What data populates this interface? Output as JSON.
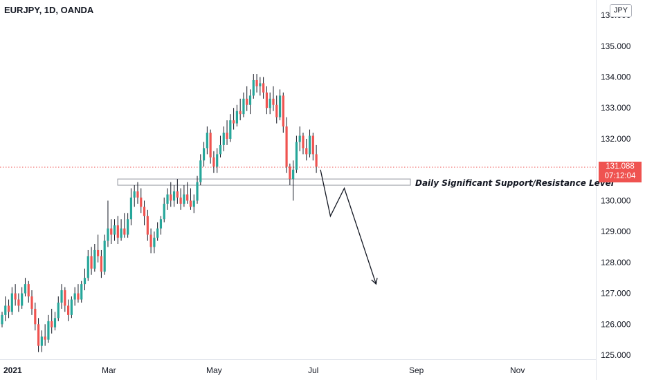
{
  "header": {
    "symbol": "EURJPY, 1D, OANDA",
    "currency": "JPY"
  },
  "last_price": {
    "value": "131.088",
    "countdown": "07:12:04"
  },
  "annotation": {
    "label": "Daily Significant Support/Resistance Level",
    "zone_low": 130.5,
    "zone_high": 130.7
  },
  "colors": {
    "up": "#26a69a",
    "down": "#ef5350",
    "text": "#131722",
    "axis_line": "#e0e3eb",
    "zone_border": "#9598a1"
  },
  "chart_data": {
    "type": "candlestick",
    "title": "EURJPY, 1D, OANDA",
    "ylim": [
      124.9,
      136.1
    ],
    "y_ticks": [
      "125.000",
      "126.000",
      "127.000",
      "128.000",
      "129.000",
      "130.000",
      "131.000",
      "132.000",
      "133.000",
      "134.000",
      "135.000",
      "136.000"
    ],
    "x_ticks": [
      "2021",
      "Mar",
      "May",
      "Jul",
      "Sep",
      "Nov"
    ],
    "current_price": 131.088,
    "ohlc_series": [
      [
        126.0,
        126.4,
        125.9,
        126.3
      ],
      [
        126.3,
        126.9,
        126.1,
        126.6
      ],
      [
        126.6,
        126.8,
        126.2,
        126.4
      ],
      [
        126.4,
        127.2,
        126.3,
        127.0
      ],
      [
        127.0,
        127.3,
        126.6,
        126.8
      ],
      [
        126.8,
        127.0,
        126.4,
        126.6
      ],
      [
        126.6,
        127.2,
        126.5,
        127.0
      ],
      [
        127.0,
        127.5,
        126.9,
        127.3
      ],
      [
        127.3,
        127.4,
        126.7,
        126.9
      ],
      [
        126.9,
        127.1,
        126.3,
        126.5
      ],
      [
        126.5,
        126.7,
        125.8,
        126.0
      ],
      [
        126.0,
        126.2,
        125.1,
        125.3
      ],
      [
        125.3,
        125.8,
        125.1,
        125.6
      ],
      [
        125.6,
        126.0,
        125.3,
        125.5
      ],
      [
        125.5,
        126.3,
        125.4,
        126.1
      ],
      [
        126.1,
        126.5,
        125.7,
        125.9
      ],
      [
        125.9,
        126.4,
        125.8,
        126.2
      ],
      [
        126.2,
        126.9,
        126.1,
        126.7
      ],
      [
        126.7,
        127.3,
        126.5,
        127.1
      ],
      [
        127.1,
        127.2,
        126.4,
        126.6
      ],
      [
        126.6,
        126.8,
        126.1,
        126.3
      ],
      [
        126.3,
        126.9,
        126.2,
        126.8
      ],
      [
        126.8,
        127.2,
        126.6,
        127.0
      ],
      [
        127.0,
        127.3,
        126.7,
        126.8
      ],
      [
        126.8,
        127.4,
        126.7,
        127.3
      ],
      [
        127.3,
        127.8,
        127.1,
        127.5
      ],
      [
        127.5,
        128.4,
        127.4,
        128.2
      ],
      [
        128.2,
        128.5,
        127.6,
        127.8
      ],
      [
        127.8,
        128.6,
        127.7,
        128.4
      ],
      [
        128.4,
        128.9,
        128.0,
        128.2
      ],
      [
        128.2,
        128.4,
        127.5,
        127.7
      ],
      [
        127.7,
        128.9,
        127.6,
        128.7
      ],
      [
        128.7,
        130.0,
        128.5,
        129.1
      ],
      [
        129.1,
        129.4,
        128.6,
        128.9
      ],
      [
        128.9,
        129.4,
        128.7,
        129.2
      ],
      [
        129.2,
        129.5,
        128.6,
        128.8
      ],
      [
        128.8,
        129.4,
        128.7,
        129.1
      ],
      [
        129.1,
        129.6,
        128.8,
        128.9
      ],
      [
        128.9,
        129.6,
        128.8,
        129.4
      ],
      [
        129.4,
        130.4,
        129.2,
        130.1
      ],
      [
        130.1,
        130.5,
        129.8,
        130.3
      ],
      [
        130.3,
        130.6,
        129.9,
        130.1
      ],
      [
        130.1,
        130.4,
        129.6,
        129.8
      ],
      [
        129.8,
        130.0,
        129.2,
        129.5
      ],
      [
        129.5,
        129.7,
        128.7,
        128.9
      ],
      [
        128.9,
        129.1,
        128.3,
        128.5
      ],
      [
        128.5,
        129.0,
        128.3,
        128.8
      ],
      [
        128.8,
        129.3,
        128.7,
        129.1
      ],
      [
        129.1,
        129.5,
        128.9,
        129.4
      ],
      [
        129.4,
        130.1,
        129.3,
        129.9
      ],
      [
        129.9,
        130.4,
        129.7,
        130.2
      ],
      [
        130.2,
        130.6,
        129.8,
        130.0
      ],
      [
        130.0,
        130.5,
        129.8,
        130.3
      ],
      [
        130.3,
        130.7,
        129.9,
        130.1
      ],
      [
        130.1,
        130.4,
        129.7,
        129.9
      ],
      [
        129.9,
        130.5,
        129.8,
        130.2
      ],
      [
        130.2,
        130.6,
        129.9,
        130.0
      ],
      [
        130.0,
        130.4,
        129.7,
        129.8
      ],
      [
        129.8,
        130.2,
        129.6,
        130.0
      ],
      [
        130.0,
        130.8,
        129.9,
        130.6
      ],
      [
        130.6,
        131.5,
        130.5,
        131.3
      ],
      [
        131.3,
        131.9,
        131.1,
        131.7
      ],
      [
        131.7,
        132.4,
        131.5,
        132.2
      ],
      [
        132.2,
        132.3,
        131.2,
        131.4
      ],
      [
        131.4,
        131.6,
        130.9,
        131.1
      ],
      [
        131.1,
        131.7,
        130.9,
        131.5
      ],
      [
        131.5,
        132.1,
        131.4,
        131.8
      ],
      [
        131.8,
        132.4,
        131.6,
        132.2
      ],
      [
        132.2,
        132.6,
        131.8,
        132.0
      ],
      [
        132.0,
        132.8,
        131.9,
        132.6
      ],
      [
        132.6,
        133.0,
        132.3,
        132.5
      ],
      [
        132.5,
        133.1,
        132.4,
        132.9
      ],
      [
        132.9,
        133.3,
        132.6,
        132.8
      ],
      [
        132.8,
        133.5,
        132.7,
        133.3
      ],
      [
        133.3,
        133.7,
        132.9,
        133.1
      ],
      [
        133.1,
        133.6,
        132.8,
        133.4
      ],
      [
        133.4,
        134.1,
        133.3,
        133.9
      ],
      [
        133.9,
        134.1,
        133.5,
        133.7
      ],
      [
        133.7,
        134.0,
        133.4,
        133.8
      ],
      [
        133.8,
        134.0,
        133.3,
        133.5
      ],
      [
        133.5,
        133.7,
        132.8,
        133.0
      ],
      [
        133.0,
        133.5,
        132.8,
        133.3
      ],
      [
        133.3,
        133.7,
        132.9,
        133.1
      ],
      [
        133.1,
        133.4,
        132.5,
        132.7
      ],
      [
        132.7,
        133.6,
        132.6,
        133.4
      ],
      [
        133.4,
        133.5,
        132.2,
        132.4
      ],
      [
        132.4,
        132.7,
        130.9,
        131.1
      ],
      [
        131.1,
        131.2,
        130.5,
        130.7
      ],
      [
        130.7,
        131.3,
        130.0,
        131.0
      ],
      [
        131.0,
        132.1,
        130.9,
        131.9
      ],
      [
        131.9,
        132.4,
        131.6,
        132.1
      ],
      [
        132.1,
        132.2,
        131.5,
        131.7
      ],
      [
        131.7,
        132.0,
        131.3,
        131.5
      ],
      [
        131.5,
        132.3,
        131.4,
        132.1
      ],
      [
        132.1,
        132.2,
        131.3,
        131.5
      ],
      [
        131.5,
        131.8,
        130.9,
        131.1
      ]
    ],
    "projection_path": [
      [
        0,
        131.0
      ],
      [
        5,
        129.5
      ],
      [
        12,
        130.4
      ],
      [
        28,
        127.3
      ]
    ]
  }
}
